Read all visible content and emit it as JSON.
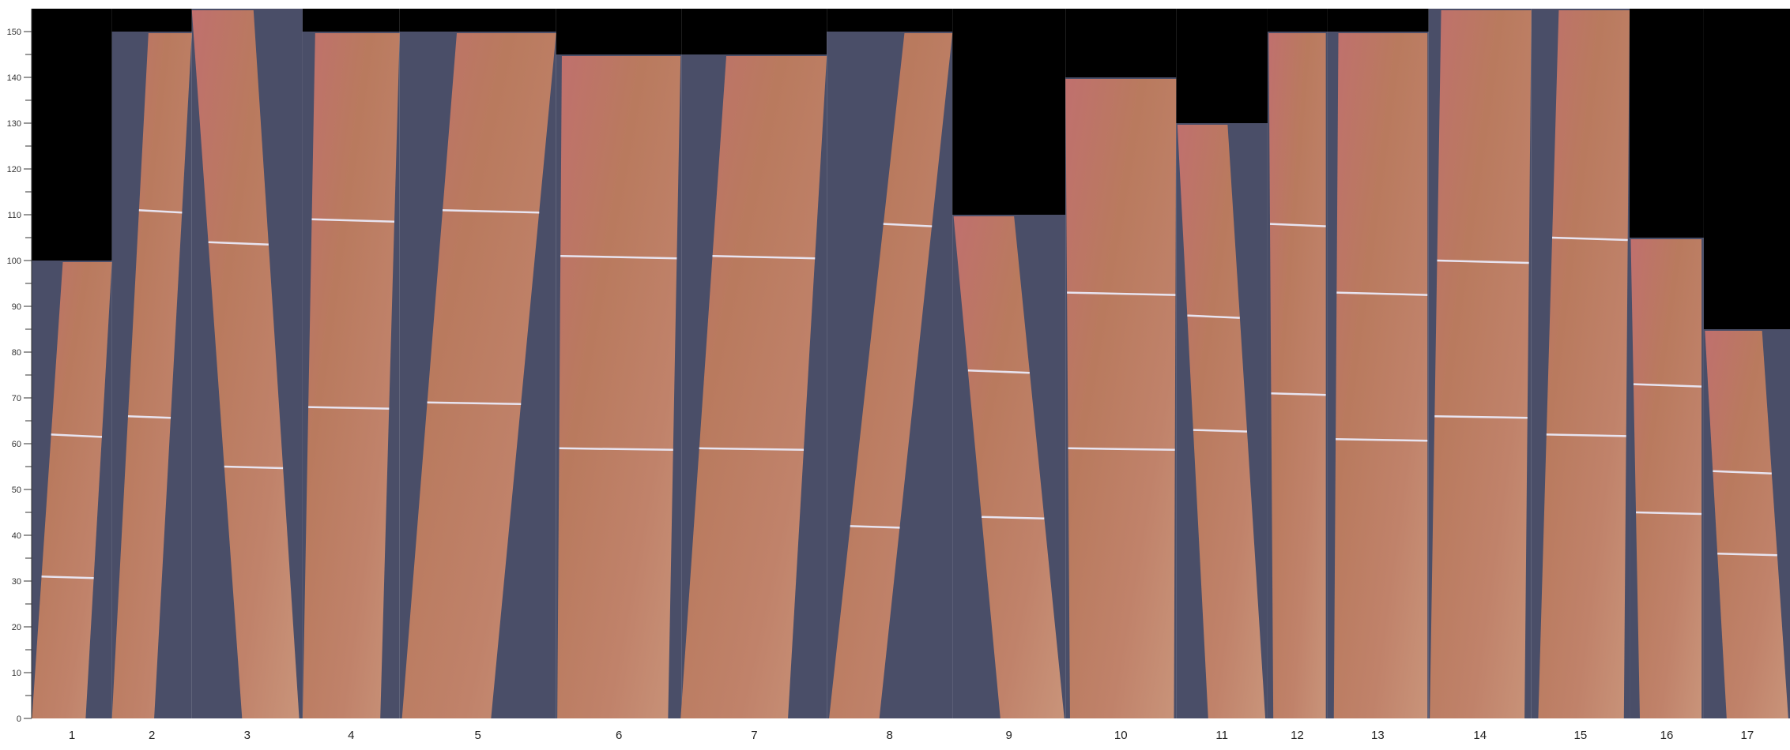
{
  "chart_data": {
    "type": "bar",
    "title": "",
    "xlabel": "",
    "ylabel": "",
    "ylim": [
      0,
      155
    ],
    "yticks": [
      0,
      10,
      20,
      30,
      40,
      50,
      60,
      70,
      80,
      90,
      100,
      110,
      120,
      130,
      140,
      150
    ],
    "grid": false,
    "categories": [
      "1",
      "2",
      "3",
      "4",
      "5",
      "6",
      "7",
      "8",
      "9",
      "10",
      "11",
      "12",
      "13",
      "14",
      "15",
      "16",
      "17"
    ],
    "values": [
      100,
      150,
      155,
      150,
      150,
      145,
      145,
      150,
      110,
      140,
      130,
      150,
      150,
      155,
      155,
      105,
      85
    ],
    "cut_marks": [
      [
        62,
        31
      ],
      [
        111,
        66
      ],
      [
        104,
        55
      ],
      [
        109,
        68
      ],
      [
        111,
        69
      ],
      [
        101,
        59
      ],
      [
        101,
        59
      ],
      [
        108,
        42
      ],
      [
        76,
        44
      ],
      [
        93,
        59
      ],
      [
        88,
        63
      ],
      [
        108,
        71
      ],
      [
        93,
        61
      ],
      [
        100,
        66
      ],
      [
        105,
        62
      ],
      [
        73,
        45
      ],
      [
        54,
        36
      ]
    ],
    "colors": {
      "background_column": "#4a4e68",
      "empty": "#000000",
      "wood_light": "#c08466",
      "wood_pink": "#c0706e",
      "cut_line": "#e8e4f0"
    }
  }
}
